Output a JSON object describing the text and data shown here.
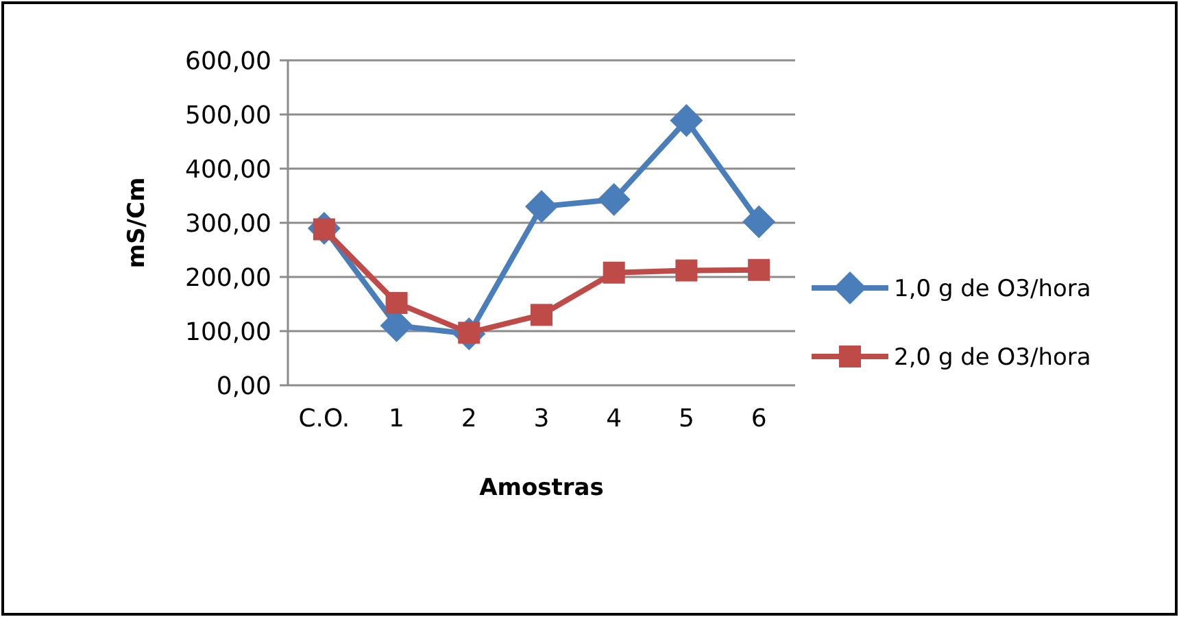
{
  "chart_data": {
    "type": "line",
    "xlabel": "Amostras",
    "ylabel": "mS/Cm",
    "categories": [
      "C.O.",
      "1",
      "2",
      "3",
      "4",
      "5",
      "6"
    ],
    "series": [
      {
        "name": "1,0 g de O3/hora",
        "color": "#4a7ebb",
        "marker": "diamond",
        "values": [
          290,
          110,
          95,
          330,
          343,
          489,
          302
        ]
      },
      {
        "name": "2,0 g de O3/hora",
        "color": "#be4b48",
        "marker": "square",
        "values": [
          288,
          152,
          97,
          130,
          208,
          212,
          213
        ]
      }
    ],
    "ylim": [
      0,
      600
    ],
    "yticks": [
      {
        "value": 0,
        "label": "0,00"
      },
      {
        "value": 100,
        "label": "100,00"
      },
      {
        "value": 200,
        "label": "200,00"
      },
      {
        "value": 300,
        "label": "300,00"
      },
      {
        "value": 400,
        "label": "400,00"
      },
      {
        "value": 500,
        "label": "500,00"
      },
      {
        "value": 600,
        "label": "600,00"
      }
    ],
    "grid": "y",
    "legend": "right"
  }
}
